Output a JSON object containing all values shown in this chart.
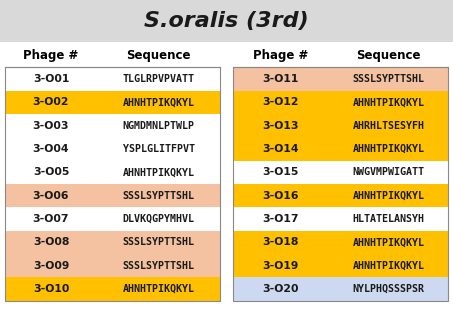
{
  "title": "S.oralis (3rd)",
  "title_bg": "#d9d9d9",
  "bg_color": "#ffffff",
  "left_table": [
    {
      "phage": "3-O01",
      "sequence": "TLGLRPVPVATT",
      "bg": "#ffffff"
    },
    {
      "phage": "3-O02",
      "sequence": "AHNHTPIKQKYL",
      "bg": "#ffc000"
    },
    {
      "phage": "3-O03",
      "sequence": "NGMDMNLPTWLP",
      "bg": "#ffffff"
    },
    {
      "phage": "3-O04",
      "sequence": "YSPLGLITFPVT",
      "bg": "#ffffff"
    },
    {
      "phage": "3-O05",
      "sequence": "AHNHTPIKQKYL",
      "bg": "#ffffff"
    },
    {
      "phage": "3-O06",
      "sequence": "SSSLSYPTTSHL",
      "bg": "#f4c2a1"
    },
    {
      "phage": "3-O07",
      "sequence": "DLVKQGPYMHVL",
      "bg": "#ffffff"
    },
    {
      "phage": "3-O08",
      "sequence": "SSSLSYPTTSHL",
      "bg": "#f4c2a1"
    },
    {
      "phage": "3-O09",
      "sequence": "SSSLSYPTTSHL",
      "bg": "#f4c2a1"
    },
    {
      "phage": "3-O10",
      "sequence": "AHNHTPIKQKYL",
      "bg": "#ffc000"
    }
  ],
  "right_table": [
    {
      "phage": "3-O11",
      "sequence": "SSSLSYPTTSHL",
      "bg": "#f4c2a1"
    },
    {
      "phage": "3-O12",
      "sequence": "AHNHTPIKQKYL",
      "bg": "#ffc000"
    },
    {
      "phage": "3-O13",
      "sequence": "AHRHLTSESYFH",
      "bg": "#ffc000"
    },
    {
      "phage": "3-O14",
      "sequence": "AHNHTPIKQKYL",
      "bg": "#ffc000"
    },
    {
      "phage": "3-O15",
      "sequence": "NWGVMPWIGATT",
      "bg": "#ffffff"
    },
    {
      "phage": "3-O16",
      "sequence": "AHNHTPIKQKYL",
      "bg": "#ffc000"
    },
    {
      "phage": "3-O17",
      "sequence": "HLTATELANSYH",
      "bg": "#ffffff"
    },
    {
      "phage": "3-O18",
      "sequence": "AHNHTPIKQKYL",
      "bg": "#ffc000"
    },
    {
      "phage": "3-O19",
      "sequence": "AHNHTPIKQKYL",
      "bg": "#ffc000"
    },
    {
      "phage": "3-O20",
      "sequence": "NYLPHQSSSPSR",
      "bg": "#ccd9f0"
    }
  ],
  "col_header": [
    "Phage #",
    "Sequence"
  ],
  "text_color": "#1a1a1a",
  "header_text_color": "#000000",
  "border_color": "#888888"
}
